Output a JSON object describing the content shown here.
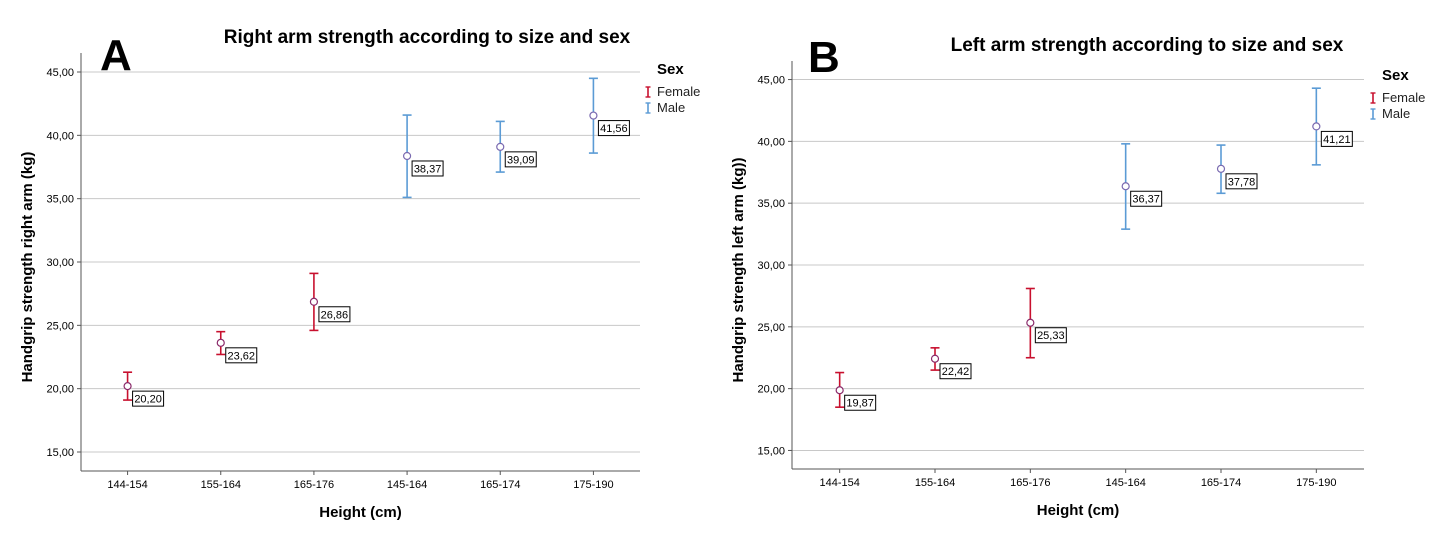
{
  "chart_data": [
    {
      "type": "errorbar",
      "panel": "A",
      "title": "Right arm strength according to size and sex",
      "xlabel": "Height (cm)",
      "ylabel": "Handgrip strength right arm (kg)",
      "ylim": [
        13.5,
        46.5
      ],
      "yticks": [
        "15,00",
        "20,00",
        "25,00",
        "30,00",
        "35,00",
        "40,00",
        "45,00"
      ],
      "ytick_values": [
        15,
        20,
        25,
        30,
        35,
        40,
        45
      ],
      "grid": true,
      "legend": {
        "title": "Sex",
        "placement": "top-right",
        "entries": [
          "Female",
          "Male"
        ]
      },
      "categories": [
        "144-154",
        "155-164",
        "165-176",
        "145-164",
        "165-174",
        "175-190"
      ],
      "points": [
        {
          "category": "144-154",
          "sex": "Female",
          "mean": 20.2,
          "low": 19.1,
          "high": 21.3,
          "label": "20,20"
        },
        {
          "category": "155-164",
          "sex": "Female",
          "mean": 23.62,
          "low": 22.7,
          "high": 24.5,
          "label": "23,62"
        },
        {
          "category": "165-176",
          "sex": "Female",
          "mean": 26.86,
          "low": 24.6,
          "high": 29.1,
          "label": "26,86"
        },
        {
          "category": "145-164",
          "sex": "Male",
          "mean": 38.37,
          "low": 35.1,
          "high": 41.6,
          "label": "38,37"
        },
        {
          "category": "165-174",
          "sex": "Male",
          "mean": 39.09,
          "low": 37.1,
          "high": 41.1,
          "label": "39,09"
        },
        {
          "category": "175-190",
          "sex": "Male",
          "mean": 41.56,
          "low": 38.6,
          "high": 44.5,
          "label": "41,56"
        }
      ]
    },
    {
      "type": "errorbar",
      "panel": "B",
      "title": "Left arm strength according to size and sex",
      "xlabel": "Height (cm)",
      "ylabel": "Handgrip strength left arm (kg))",
      "ylim": [
        13.5,
        46.5
      ],
      "yticks": [
        "15,00",
        "20,00",
        "25,00",
        "30,00",
        "35,00",
        "40,00",
        "45,00"
      ],
      "ytick_values": [
        15,
        20,
        25,
        30,
        35,
        40,
        45
      ],
      "grid": true,
      "legend": {
        "title": "Sex",
        "placement": "top-right",
        "entries": [
          "Female",
          "Male"
        ]
      },
      "categories": [
        "144-154",
        "155-164",
        "165-176",
        "145-164",
        "165-174",
        "175-190"
      ],
      "points": [
        {
          "category": "144-154",
          "sex": "Female",
          "mean": 19.87,
          "low": 18.5,
          "high": 21.3,
          "label": "19,87"
        },
        {
          "category": "155-164",
          "sex": "Female",
          "mean": 22.42,
          "low": 21.5,
          "high": 23.3,
          "label": "22,42"
        },
        {
          "category": "165-176",
          "sex": "Female",
          "mean": 25.33,
          "low": 22.5,
          "high": 28.1,
          "label": "25,33"
        },
        {
          "category": "145-164",
          "sex": "Male",
          "mean": 36.37,
          "low": 32.9,
          "high": 39.8,
          "label": "36,37"
        },
        {
          "category": "165-174",
          "sex": "Male",
          "mean": 37.78,
          "low": 35.8,
          "high": 39.7,
          "label": "37,78"
        },
        {
          "category": "175-190",
          "sex": "Male",
          "mean": 41.21,
          "low": 38.1,
          "high": 44.3,
          "label": "41,21"
        }
      ]
    }
  ],
  "colors": {
    "female": "#c8102e",
    "male": "#5b9bd5",
    "marker": "#8a2a6a",
    "grid": "#c8c8c8",
    "axis": "#555555"
  }
}
